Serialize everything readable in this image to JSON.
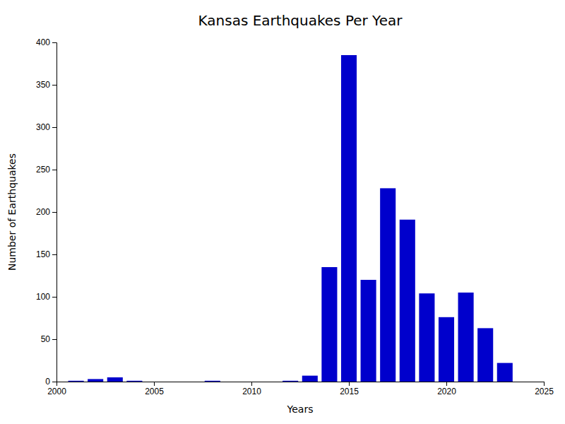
{
  "chart_data": {
    "type": "bar",
    "title": "Kansas Earthquakes Per Year",
    "xlabel": "Years",
    "ylabel": "Number of Earthquakes",
    "x": [
      2001,
      2002,
      2003,
      2004,
      2005,
      2006,
      2007,
      2008,
      2009,
      2010,
      2011,
      2012,
      2013,
      2014,
      2015,
      2016,
      2017,
      2018,
      2019,
      2020,
      2021,
      2022,
      2023
    ],
    "values": [
      1,
      3,
      5,
      1,
      0,
      0,
      0,
      1,
      0,
      0,
      0,
      1,
      7,
      135,
      385,
      120,
      228,
      191,
      104,
      76,
      105,
      63,
      22
    ],
    "color": "#0000cc",
    "xlim": [
      2000,
      2025
    ],
    "ylim": [
      0,
      400
    ],
    "xticks": [
      2000,
      2005,
      2010,
      2015,
      2020,
      2025
    ],
    "yticks": [
      0,
      50,
      100,
      150,
      200,
      250,
      300,
      350,
      400
    ]
  }
}
